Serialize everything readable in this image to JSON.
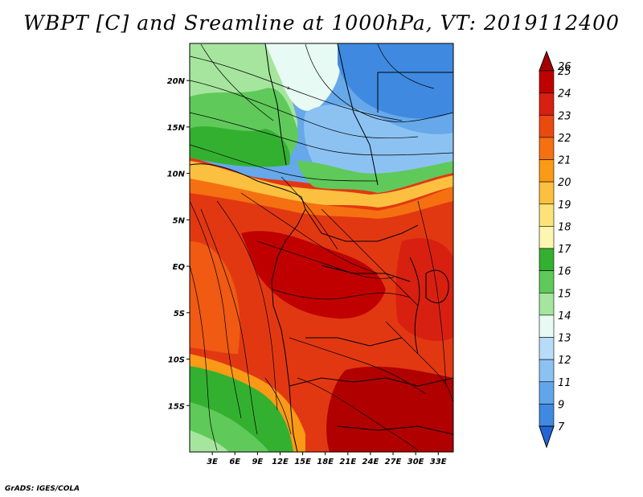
{
  "title": "WBPT [C] and Sreamline at 1000hPa, VT: 2019112400",
  "footer": "GrADS: IGES/COLA",
  "map": {
    "lon_range": [
      0,
      35
    ],
    "lat_range": [
      -20,
      24
    ],
    "lon_ticks": [
      {
        "value": 3,
        "label": "3E"
      },
      {
        "value": 6,
        "label": "6E"
      },
      {
        "value": 9,
        "label": "9E"
      },
      {
        "value": 12,
        "label": "12E"
      },
      {
        "value": 15,
        "label": "15E"
      },
      {
        "value": 18,
        "label": "18E"
      },
      {
        "value": 21,
        "label": "21E"
      },
      {
        "value": 24,
        "label": "24E"
      },
      {
        "value": 27,
        "label": "27E"
      },
      {
        "value": 30,
        "label": "30E"
      },
      {
        "value": 33,
        "label": "33E"
      }
    ],
    "lat_ticks": [
      {
        "value": 20,
        "label": "20N"
      },
      {
        "value": 15,
        "label": "15N"
      },
      {
        "value": 10,
        "label": "10N"
      },
      {
        "value": 5,
        "label": "5N"
      },
      {
        "value": 0,
        "label": "EQ"
      },
      {
        "value": -5,
        "label": "5S"
      },
      {
        "value": -10,
        "label": "10S"
      },
      {
        "value": -15,
        "label": "15S"
      }
    ]
  },
  "colorbar": {
    "levels": [
      {
        "label": "26",
        "color": "#a50000"
      },
      {
        "label": "25",
        "color": "#c00000"
      },
      {
        "label": "24",
        "color": "#d82010"
      },
      {
        "label": "23",
        "color": "#ea4a10"
      },
      {
        "label": "22",
        "color": "#f57010"
      },
      {
        "label": "21",
        "color": "#fa9a16"
      },
      {
        "label": "20",
        "color": "#fcc040"
      },
      {
        "label": "19",
        "color": "#fde27a"
      },
      {
        "label": "18",
        "color": "#fcf6b0"
      },
      {
        "label": "17",
        "color": "#34b030"
      },
      {
        "label": "16",
        "color": "#5fc95a"
      },
      {
        "label": "15",
        "color": "#a6e59e"
      },
      {
        "label": "14",
        "color": "#e8faf4"
      },
      {
        "label": "13",
        "color": "#b8dcf8"
      },
      {
        "label": "12",
        "color": "#8cc2f2"
      },
      {
        "label": "11",
        "color": "#62a6ea"
      },
      {
        "label": "9",
        "color": "#3f8ae0"
      },
      {
        "label": "7",
        "color": "#2266d6"
      }
    ]
  }
}
